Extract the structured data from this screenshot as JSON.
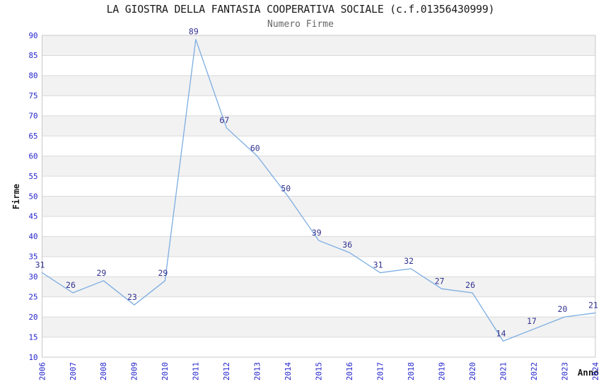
{
  "chart_data": {
    "type": "line",
    "title": "LA GIOSTRA DELLA FANTASIA COOPERATIVA SOCIALE (c.f.01356430999)",
    "subtitle": "Numero Firme",
    "xlabel": "Anno",
    "ylabel": "Firme",
    "categories": [
      "2006",
      "2007",
      "2008",
      "2009",
      "2010",
      "2011",
      "2012",
      "2013",
      "2014",
      "2015",
      "2016",
      "2017",
      "2018",
      "2019",
      "2020",
      "2021",
      "2022",
      "2023",
      "2024"
    ],
    "series": [
      {
        "name": "Numero Firme",
        "values": [
          31,
          26,
          29,
          23,
          29,
          89,
          67,
          60,
          50,
          39,
          36,
          31,
          32,
          27,
          26,
          14,
          17,
          20,
          21
        ]
      }
    ],
    "ylim": [
      10,
      90
    ],
    "ytick_step": 5,
    "grid": "horizontal-lines-with-alternating-bands",
    "legend": "none",
    "point_labels": true,
    "x_tick_rotation": 90,
    "colors": {
      "line": "#7cade2",
      "point_label": "#31318f",
      "tick_label": "#2323cc",
      "band": "#f2f2f2",
      "grid_line": "#dadada",
      "frame": "#c8c8c8",
      "title": "#1a1a1a",
      "subtitle": "#666666",
      "axis_label": "#1a1a1a",
      "background": "#ffffff"
    }
  }
}
